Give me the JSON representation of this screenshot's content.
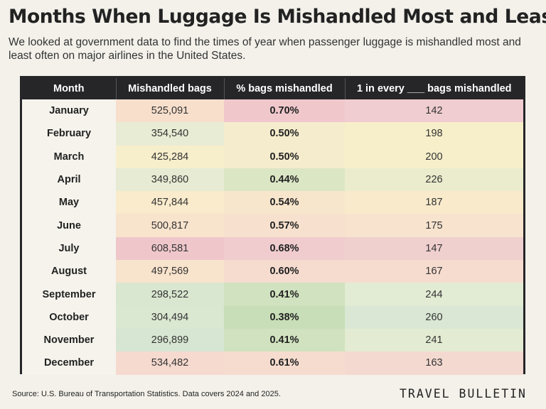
{
  "title": "Months When Luggage Is Mishandled Most and Least",
  "subtitle": "We looked at government data to find the times of year when passenger luggage is mishandled most and least often on major airlines in the United States.",
  "source": "Source: U.S. Bureau of Transportation Statistics.  Data covers 2024 and 2025.",
  "brand": "TRAVEL BULLETIN",
  "chart_data": {
    "type": "table",
    "columns": [
      "Month",
      "Mishandled bags",
      "% bags mishandled",
      "1 in every ___ bags mishandled"
    ],
    "rows": [
      {
        "month": "January",
        "bags": "525,091",
        "pct": "0.70%",
        "one_in": "142",
        "colors": [
          "#f7dfcc",
          "#f0c8cc",
          "#f0cdd0"
        ]
      },
      {
        "month": "February",
        "bags": "354,540",
        "pct": "0.50%",
        "one_in": "198",
        "colors": [
          "#e9ecd4",
          "#f5eccd",
          "#f7efc9"
        ]
      },
      {
        "month": "March",
        "bags": "425,284",
        "pct": "0.50%",
        "one_in": "200",
        "colors": [
          "#f7eecb",
          "#f5eccd",
          "#f6efca"
        ]
      },
      {
        "month": "April",
        "bags": "349,860",
        "pct": "0.44%",
        "one_in": "226",
        "colors": [
          "#e7ebd3",
          "#dbe6c5",
          "#ebeccd"
        ]
      },
      {
        "month": "May",
        "bags": "457,844",
        "pct": "0.54%",
        "one_in": "187",
        "colors": [
          "#f9ebcc",
          "#f8e6cc",
          "#f8eacb"
        ]
      },
      {
        "month": "June",
        "bags": "500,817",
        "pct": "0.57%",
        "one_in": "175",
        "colors": [
          "#f8e3cd",
          "#f7e1ce",
          "#f7e3ce"
        ]
      },
      {
        "month": "July",
        "bags": "608,581",
        "pct": "0.68%",
        "one_in": "147",
        "colors": [
          "#efc7cb",
          "#f0ccce",
          "#f0cfcf"
        ]
      },
      {
        "month": "August",
        "bags": "497,569",
        "pct": "0.60%",
        "one_in": "167",
        "colors": [
          "#f8e3cc",
          "#f6dccf",
          "#f6dccf"
        ]
      },
      {
        "month": "September",
        "bags": "298,522",
        "pct": "0.41%",
        "one_in": "244",
        "colors": [
          "#d9e7d0",
          "#d0e2bf",
          "#e2ebd3"
        ]
      },
      {
        "month": "October",
        "bags": "304,494",
        "pct": "0.38%",
        "one_in": "260",
        "colors": [
          "#dae7d1",
          "#c7deb8",
          "#d9e7d4"
        ]
      },
      {
        "month": "November",
        "bags": "296,899",
        "pct": "0.41%",
        "one_in": "241",
        "colors": [
          "#d7e6d2",
          "#d0e2bf",
          "#e3ebd2"
        ]
      },
      {
        "month": "December",
        "bags": "534,482",
        "pct": "0.61%",
        "one_in": "163",
        "colors": [
          "#f6dacf",
          "#f6dccf",
          "#f4d9d1"
        ]
      }
    ]
  }
}
